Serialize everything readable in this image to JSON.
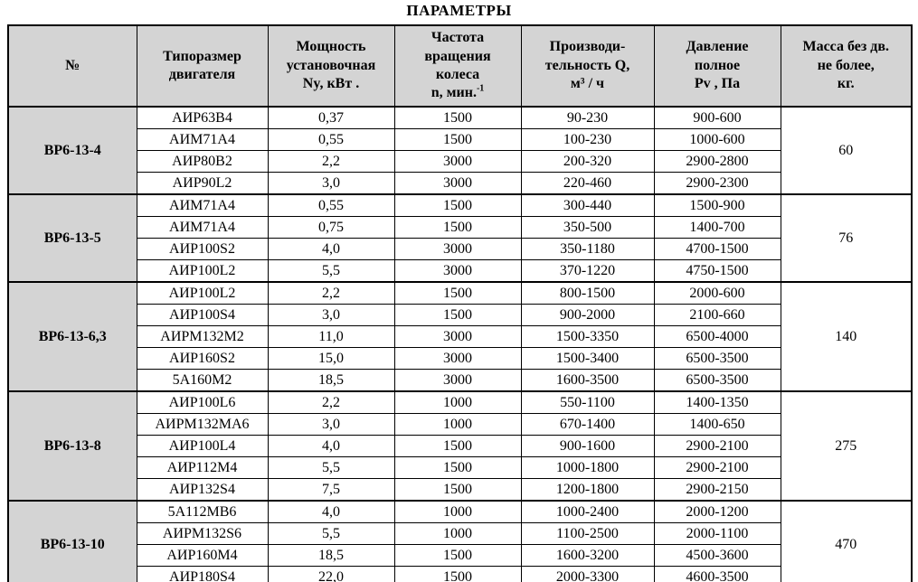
{
  "title": "ПАРАМЕТРЫ",
  "colors": {
    "header_bg": "#d4d4d4",
    "border": "#000000",
    "text": "#000000",
    "page_bg": "#ffffff"
  },
  "table": {
    "headers": [
      {
        "text": "№"
      },
      {
        "text": "Типоразмер\nдвигателя"
      },
      {
        "text": "Мощность\nустановочная\nNy, кВт ."
      },
      {
        "text": "Частота\nвращения\nколеса\nn, мин.",
        "sup": "-1"
      },
      {
        "text": "Производи-\nтельность Q,\nм³ / ч"
      },
      {
        "text": "Давление\nполное\nPv , Па"
      },
      {
        "text": "Масса без дв.\nне более,\nкг."
      }
    ],
    "groups": [
      {
        "name": "ВР6-13-4",
        "mass": "60",
        "rows": [
          [
            "АИР63В4",
            "0,37",
            "1500",
            "90-230",
            "900-600"
          ],
          [
            "АИМ71А4",
            "0,55",
            "1500",
            "100-230",
            "1000-600"
          ],
          [
            "АИР80В2",
            "2,2",
            "3000",
            "200-320",
            "2900-2800"
          ],
          [
            "АИР90L2",
            "3,0",
            "3000",
            "220-460",
            "2900-2300"
          ]
        ]
      },
      {
        "name": "ВР6-13-5",
        "mass": "76",
        "rows": [
          [
            "АИМ71А4",
            "0,55",
            "1500",
            "300-440",
            "1500-900"
          ],
          [
            "АИМ71А4",
            "0,75",
            "1500",
            "350-500",
            "1400-700"
          ],
          [
            "АИР100S2",
            "4,0",
            "3000",
            "350-1180",
            "4700-1500"
          ],
          [
            "АИР100L2",
            "5,5",
            "3000",
            "370-1220",
            "4750-1500"
          ]
        ]
      },
      {
        "name": "ВР6-13-6,3",
        "mass": "140",
        "rows": [
          [
            "АИР100L2",
            "2,2",
            "1500",
            "800-1500",
            "2000-600"
          ],
          [
            "АИР100S4",
            "3,0",
            "1500",
            "900-2000",
            "2100-660"
          ],
          [
            "АИРМ132М2",
            "11,0",
            "3000",
            "1500-3350",
            "6500-4000"
          ],
          [
            "АИР160S2",
            "15,0",
            "3000",
            "1500-3400",
            "6500-3500"
          ],
          [
            "5А160М2",
            "18,5",
            "3000",
            "1600-3500",
            "6500-3500"
          ]
        ]
      },
      {
        "name": "ВР6-13-8",
        "mass": "275",
        "rows": [
          [
            "АИР100L6",
            "2,2",
            "1000",
            "550-1100",
            "1400-1350"
          ],
          [
            "АИРМ132МА6",
            "3,0",
            "1000",
            "670-1400",
            "1400-650"
          ],
          [
            "АИР100L4",
            "4,0",
            "1500",
            "900-1600",
            "2900-2100"
          ],
          [
            "АИР112М4",
            "5,5",
            "1500",
            "1000-1800",
            "2900-2100"
          ],
          [
            "АИР132S4",
            "7,5",
            "1500",
            "1200-1800",
            "2900-2150"
          ]
        ]
      },
      {
        "name": "ВР6-13-10",
        "mass": "470",
        "rows": [
          [
            "5А112МВ6",
            "4,0",
            "1000",
            "1000-2400",
            "2000-1200"
          ],
          [
            "АИРМ132S6",
            "5,5",
            "1000",
            "1100-2500",
            "2000-1100"
          ],
          [
            "АИР160М4",
            "18,5",
            "1500",
            "1600-3200",
            "4500-3600"
          ],
          [
            "АИР180S4",
            "22,0",
            "1500",
            "2000-3300",
            "4600-3500"
          ]
        ]
      }
    ]
  }
}
